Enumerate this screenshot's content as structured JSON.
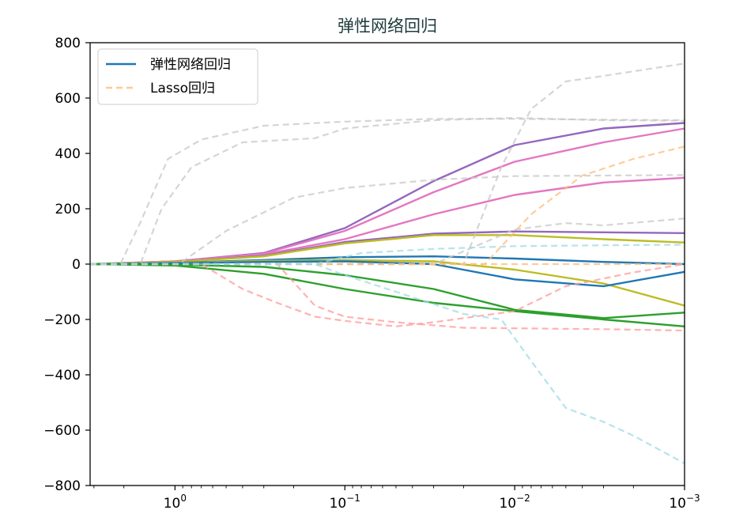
{
  "chart_data": {
    "type": "line",
    "title": "弹性网络回归",
    "xlabel": "",
    "ylabel": "",
    "x_scale": "log",
    "x_reversed": true,
    "xlim": [
      3.16,
      0.001
    ],
    "ylim": [
      -800,
      800
    ],
    "x_ticks": [
      {
        "value": 1,
        "label": "10^0"
      },
      {
        "value": 0.1,
        "label": "10^−1"
      },
      {
        "value": 0.01,
        "label": "10^−2"
      },
      {
        "value": 0.001,
        "label": "10^−3"
      }
    ],
    "y_ticks": [
      800,
      600,
      400,
      200,
      0,
      -200,
      -400,
      -600,
      -800
    ],
    "y_tick_labels": [
      "800",
      "600",
      "400",
      "200",
      "0",
      "−200",
      "−400",
      "−600",
      "−800"
    ],
    "legend": {
      "position": "top-left",
      "entries": [
        {
          "label": "弹性网络回归",
          "color": "#1f77b4",
          "dash": "solid"
        },
        {
          "label": "Lasso回归",
          "color": "#ffbb78",
          "dash": "dashed"
        }
      ]
    },
    "series": [
      {
        "group": "elastic",
        "color": "#9467bd",
        "dash": "solid",
        "opacity": 1,
        "points": [
          [
            3.16,
            0
          ],
          [
            1,
            10
          ],
          [
            0.3,
            40
          ],
          [
            0.1,
            130
          ],
          [
            0.03,
            300
          ],
          [
            0.01,
            430
          ],
          [
            0.003,
            490
          ],
          [
            0.001,
            510
          ]
        ]
      },
      {
        "group": "elastic",
        "color": "#e377c2",
        "dash": "solid",
        "opacity": 1,
        "points": [
          [
            3.16,
            0
          ],
          [
            1,
            10
          ],
          [
            0.3,
            38
          ],
          [
            0.1,
            120
          ],
          [
            0.03,
            260
          ],
          [
            0.01,
            370
          ],
          [
            0.003,
            440
          ],
          [
            0.001,
            490
          ]
        ]
      },
      {
        "group": "elastic",
        "color": "#e377c2",
        "dash": "solid",
        "opacity": 1,
        "points": [
          [
            3.16,
            0
          ],
          [
            1,
            8
          ],
          [
            0.3,
            35
          ],
          [
            0.1,
            90
          ],
          [
            0.03,
            180
          ],
          [
            0.01,
            250
          ],
          [
            0.003,
            295
          ],
          [
            0.001,
            312
          ]
        ]
      },
      {
        "group": "elastic",
        "color": "#9467bd",
        "dash": "solid",
        "opacity": 1,
        "points": [
          [
            3.16,
            0
          ],
          [
            1,
            8
          ],
          [
            0.3,
            30
          ],
          [
            0.1,
            80
          ],
          [
            0.03,
            110
          ],
          [
            0.01,
            118
          ],
          [
            0.003,
            115
          ],
          [
            0.001,
            112
          ]
        ]
      },
      {
        "group": "elastic",
        "color": "#bcbd22",
        "dash": "solid",
        "opacity": 1,
        "points": [
          [
            3.16,
            0
          ],
          [
            1,
            8
          ],
          [
            0.3,
            28
          ],
          [
            0.1,
            75
          ],
          [
            0.03,
            105
          ],
          [
            0.01,
            105
          ],
          [
            0.003,
            90
          ],
          [
            0.001,
            78
          ]
        ]
      },
      {
        "group": "elastic",
        "color": "#1f77b4",
        "dash": "solid",
        "opacity": 1,
        "points": [
          [
            3.16,
            0
          ],
          [
            1,
            5
          ],
          [
            0.3,
            15
          ],
          [
            0.1,
            25
          ],
          [
            0.03,
            28
          ],
          [
            0.01,
            20
          ],
          [
            0.003,
            8
          ],
          [
            0.001,
            0
          ]
        ]
      },
      {
        "group": "elastic",
        "color": "#bcbd22",
        "dash": "solid",
        "opacity": 1,
        "points": [
          [
            3.16,
            0
          ],
          [
            1,
            4
          ],
          [
            0.3,
            12
          ],
          [
            0.1,
            15
          ],
          [
            0.03,
            10
          ],
          [
            0.01,
            -20
          ],
          [
            0.003,
            -70
          ],
          [
            0.001,
            -150
          ]
        ]
      },
      {
        "group": "elastic",
        "color": "#1f77b4",
        "dash": "solid",
        "opacity": 1,
        "points": [
          [
            3.16,
            0
          ],
          [
            1,
            3
          ],
          [
            0.3,
            8
          ],
          [
            0.1,
            10
          ],
          [
            0.03,
            0
          ],
          [
            0.01,
            -55
          ],
          [
            0.003,
            -80
          ],
          [
            0.001,
            -28
          ]
        ]
      },
      {
        "group": "elastic",
        "color": "#2ca02c",
        "dash": "solid",
        "opacity": 1,
        "points": [
          [
            3.16,
            0
          ],
          [
            1,
            -2
          ],
          [
            0.3,
            -10
          ],
          [
            0.1,
            -40
          ],
          [
            0.03,
            -90
          ],
          [
            0.01,
            -165
          ],
          [
            0.003,
            -195
          ],
          [
            0.001,
            -175
          ]
        ]
      },
      {
        "group": "elastic",
        "color": "#2ca02c",
        "dash": "solid",
        "opacity": 1,
        "points": [
          [
            3.16,
            0
          ],
          [
            1,
            -5
          ],
          [
            0.3,
            -35
          ],
          [
            0.1,
            -90
          ],
          [
            0.03,
            -140
          ],
          [
            0.01,
            -170
          ],
          [
            0.003,
            -200
          ],
          [
            0.001,
            -225
          ]
        ]
      },
      {
        "group": "lasso",
        "color": "#c7c7c7",
        "dash": "dashed",
        "opacity": 0.75,
        "points": [
          [
            3.16,
            0
          ],
          [
            2.1,
            0
          ],
          [
            1.6,
            150
          ],
          [
            1.1,
            380
          ],
          [
            0.7,
            450
          ],
          [
            0.3,
            500
          ],
          [
            0.1,
            515
          ],
          [
            0.03,
            525
          ],
          [
            0.01,
            525
          ],
          [
            0.003,
            522
          ],
          [
            0.001,
            520
          ]
        ]
      },
      {
        "group": "lasso",
        "color": "#c7c7c7",
        "dash": "dashed",
        "opacity": 0.75,
        "points": [
          [
            3.16,
            0
          ],
          [
            1.6,
            0
          ],
          [
            1.2,
            200
          ],
          [
            0.8,
            350
          ],
          [
            0.4,
            440
          ],
          [
            0.15,
            455
          ],
          [
            0.1,
            490
          ],
          [
            0.03,
            520
          ],
          [
            0.01,
            528
          ],
          [
            0.003,
            520
          ],
          [
            0.001,
            518
          ]
        ]
      },
      {
        "group": "lasso",
        "color": "#c7c7c7",
        "dash": "dashed",
        "opacity": 0.75,
        "points": [
          [
            3.16,
            0
          ],
          [
            0.95,
            0
          ],
          [
            0.5,
            120
          ],
          [
            0.2,
            240
          ],
          [
            0.1,
            275
          ],
          [
            0.03,
            305
          ],
          [
            0.01,
            318
          ],
          [
            0.003,
            320
          ],
          [
            0.001,
            322
          ]
        ]
      },
      {
        "group": "lasso",
        "color": "#c7c7c7",
        "dash": "dashed",
        "opacity": 0.75,
        "points": [
          [
            3.16,
            0
          ],
          [
            0.02,
            0
          ],
          [
            0.012,
            350
          ],
          [
            0.008,
            560
          ],
          [
            0.005,
            660
          ],
          [
            0.003,
            680
          ],
          [
            0.001,
            725
          ]
        ]
      },
      {
        "group": "lasso",
        "color": "#c7c7c7",
        "dash": "dashed",
        "opacity": 0.75,
        "points": [
          [
            3.16,
            0
          ],
          [
            0.03,
            0
          ],
          [
            0.01,
            125
          ],
          [
            0.005,
            148
          ],
          [
            0.003,
            140
          ],
          [
            0.001,
            165
          ]
        ]
      },
      {
        "group": "lasso",
        "color": "#ffbb78",
        "dash": "dashed",
        "opacity": 0.75,
        "points": [
          [
            3.16,
            0
          ],
          [
            0.015,
            0
          ],
          [
            0.008,
            180
          ],
          [
            0.004,
            320
          ],
          [
            0.002,
            380
          ],
          [
            0.001,
            425
          ]
        ]
      },
      {
        "group": "lasso",
        "color": "#ffbb78",
        "dash": "dashed",
        "opacity": 0.75,
        "points": [
          [
            3.16,
            0
          ],
          [
            0.001,
            0
          ]
        ]
      },
      {
        "group": "lasso",
        "color": "#ff9896",
        "dash": "dashed",
        "opacity": 0.75,
        "points": [
          [
            3.16,
            0
          ],
          [
            0.7,
            0
          ],
          [
            0.4,
            -90
          ],
          [
            0.25,
            -140
          ],
          [
            0.15,
            -190
          ],
          [
            0.1,
            -205
          ],
          [
            0.05,
            -225
          ],
          [
            0.03,
            -210
          ],
          [
            0.01,
            -170
          ],
          [
            0.005,
            -80
          ],
          [
            0.002,
            -30
          ],
          [
            0.001,
            0
          ]
        ]
      },
      {
        "group": "lasso",
        "color": "#ff9896",
        "dash": "dashed",
        "opacity": 0.75,
        "points": [
          [
            3.16,
            0
          ],
          [
            0.25,
            0
          ],
          [
            0.15,
            -150
          ],
          [
            0.1,
            -190
          ],
          [
            0.05,
            -210
          ],
          [
            0.02,
            -230
          ],
          [
            0.01,
            -232
          ],
          [
            0.003,
            -235
          ],
          [
            0.001,
            -240
          ]
        ]
      },
      {
        "group": "lasso",
        "color": "#9edae5",
        "dash": "dashed",
        "opacity": 0.75,
        "points": [
          [
            3.16,
            0
          ],
          [
            0.15,
            0
          ],
          [
            0.1,
            -40
          ],
          [
            0.05,
            -100
          ],
          [
            0.02,
            -180
          ],
          [
            0.012,
            -200
          ],
          [
            0.008,
            -350
          ],
          [
            0.005,
            -520
          ],
          [
            0.003,
            -570
          ],
          [
            0.002,
            -620
          ],
          [
            0.001,
            -720
          ]
        ]
      },
      {
        "group": "lasso",
        "color": "#9edae5",
        "dash": "dashed",
        "opacity": 0.75,
        "points": [
          [
            3.16,
            0
          ],
          [
            0.15,
            0
          ],
          [
            0.08,
            40
          ],
          [
            0.03,
            55
          ],
          [
            0.01,
            65
          ],
          [
            0.003,
            68
          ],
          [
            0.001,
            70
          ]
        ]
      }
    ]
  }
}
